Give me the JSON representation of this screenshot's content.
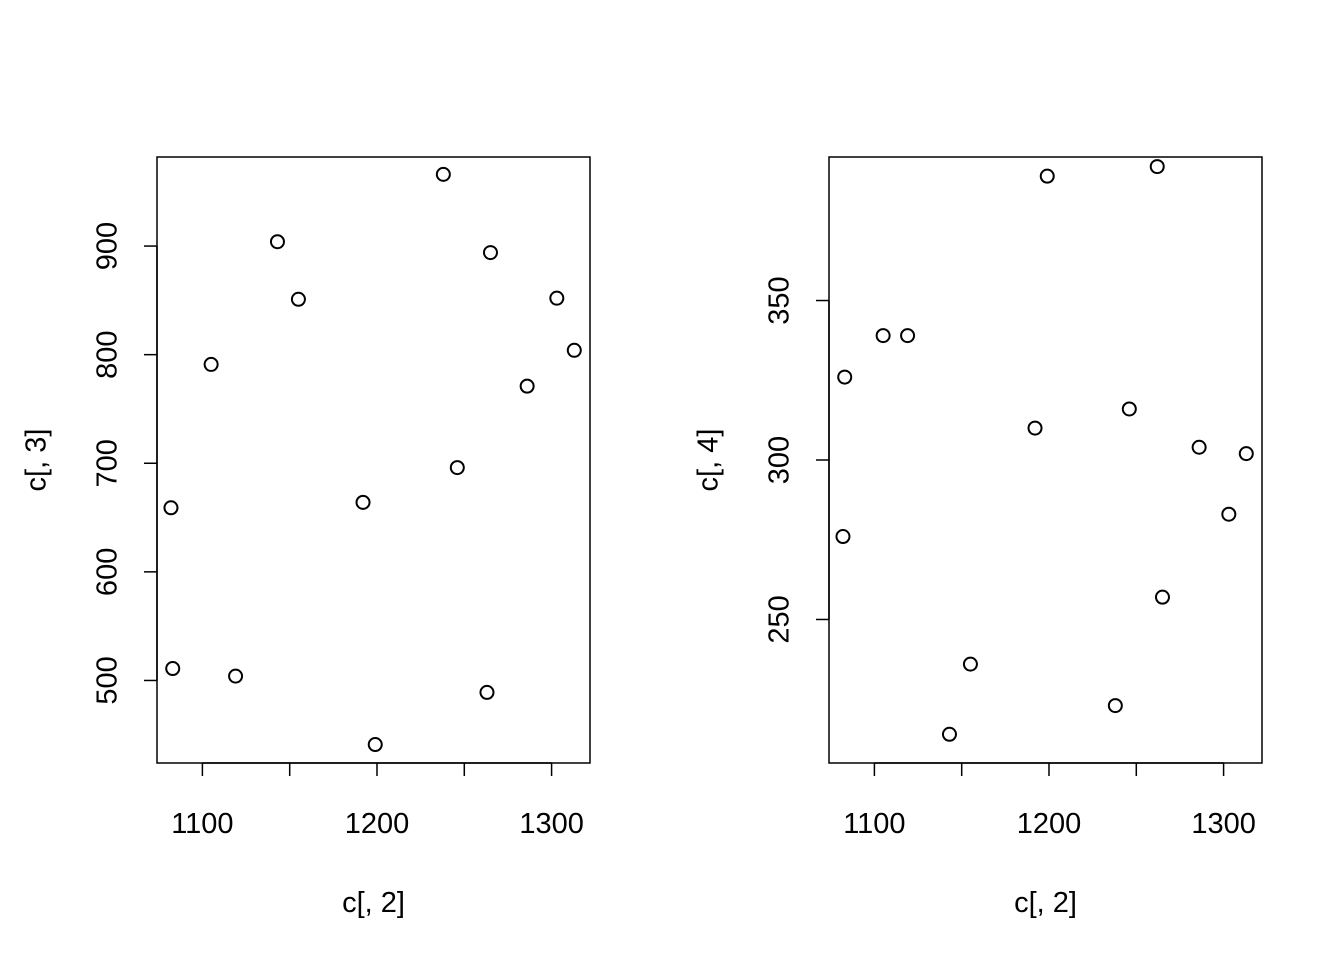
{
  "colors": {
    "points": "#000000",
    "frame": "#000000",
    "background": "#ffffff"
  },
  "chart_data": [
    {
      "type": "scatter",
      "title": "",
      "xlabel": "c[, 2]",
      "ylabel": "c[, 3]",
      "xlim": [
        1074,
        1322
      ],
      "ylim": [
        424,
        982
      ],
      "xticks": [
        "1100",
        "1200",
        "1300"
      ],
      "yticks": [
        "500",
        "600",
        "700",
        "800",
        "900"
      ],
      "grid": false,
      "legend": "none",
      "points": [
        {
          "x": 1082,
          "y": 659
        },
        {
          "x": 1083,
          "y": 511
        },
        {
          "x": 1105,
          "y": 791
        },
        {
          "x": 1119,
          "y": 504
        },
        {
          "x": 1143,
          "y": 904
        },
        {
          "x": 1155,
          "y": 851
        },
        {
          "x": 1192,
          "y": 664
        },
        {
          "x": 1199,
          "y": 441
        },
        {
          "x": 1238,
          "y": 966
        },
        {
          "x": 1246,
          "y": 696
        },
        {
          "x": 1263,
          "y": 489
        },
        {
          "x": 1265,
          "y": 894
        },
        {
          "x": 1286,
          "y": 771
        },
        {
          "x": 1303,
          "y": 852
        },
        {
          "x": 1313,
          "y": 804
        }
      ]
    },
    {
      "type": "scatter",
      "title": "",
      "xlabel": "c[, 2]",
      "ylabel": "c[, 4]",
      "xlim": [
        1074,
        1322
      ],
      "ylim": [
        205,
        395
      ],
      "xticks": [
        "1100",
        "1200",
        "1300"
      ],
      "yticks": [
        "250",
        "300",
        "350"
      ],
      "grid": false,
      "legend": "none",
      "points": [
        {
          "x": 1082,
          "y": 276
        },
        {
          "x": 1083,
          "y": 326
        },
        {
          "x": 1105,
          "y": 339
        },
        {
          "x": 1119,
          "y": 339
        },
        {
          "x": 1143,
          "y": 214
        },
        {
          "x": 1155,
          "y": 236
        },
        {
          "x": 1192,
          "y": 310
        },
        {
          "x": 1199,
          "y": 389
        },
        {
          "x": 1238,
          "y": 223
        },
        {
          "x": 1246,
          "y": 316
        },
        {
          "x": 1262,
          "y": 392
        },
        {
          "x": 1265,
          "y": 257
        },
        {
          "x": 1286,
          "y": 304
        },
        {
          "x": 1303,
          "y": 283
        },
        {
          "x": 1313,
          "y": 302
        }
      ]
    }
  ]
}
